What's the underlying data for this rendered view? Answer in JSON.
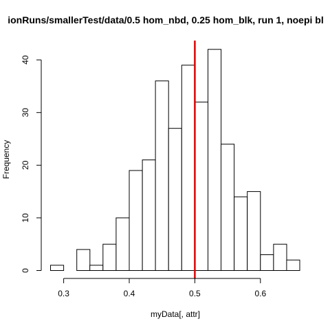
{
  "chart_data": {
    "type": "bar",
    "title": "ionRuns/smallerTest/data/0.5 hom_nbd, 0.25 hom_blk, run 1, noepi bl",
    "xlabel": "myData[, attr]",
    "ylabel": "Frequency",
    "bin_width": 0.02,
    "bins": [
      {
        "start": 0.28,
        "end": 0.3,
        "count": 1
      },
      {
        "start": 0.3,
        "end": 0.32,
        "count": 0
      },
      {
        "start": 0.32,
        "end": 0.34,
        "count": 4
      },
      {
        "start": 0.34,
        "end": 0.36,
        "count": 1
      },
      {
        "start": 0.36,
        "end": 0.38,
        "count": 5
      },
      {
        "start": 0.38,
        "end": 0.4,
        "count": 10
      },
      {
        "start": 0.4,
        "end": 0.42,
        "count": 19
      },
      {
        "start": 0.42,
        "end": 0.44,
        "count": 21
      },
      {
        "start": 0.44,
        "end": 0.46,
        "count": 36
      },
      {
        "start": 0.46,
        "end": 0.48,
        "count": 27
      },
      {
        "start": 0.48,
        "end": 0.5,
        "count": 39
      },
      {
        "start": 0.5,
        "end": 0.52,
        "count": 32
      },
      {
        "start": 0.52,
        "end": 0.54,
        "count": 42
      },
      {
        "start": 0.54,
        "end": 0.56,
        "count": 24
      },
      {
        "start": 0.56,
        "end": 0.58,
        "count": 14
      },
      {
        "start": 0.58,
        "end": 0.6,
        "count": 15
      },
      {
        "start": 0.6,
        "end": 0.62,
        "count": 3
      },
      {
        "start": 0.62,
        "end": 0.64,
        "count": 5
      },
      {
        "start": 0.64,
        "end": 0.66,
        "count": 2
      }
    ],
    "x_ticks": [
      {
        "value": 0.3,
        "label": "0.3"
      },
      {
        "value": 0.4,
        "label": "0.4"
      },
      {
        "value": 0.5,
        "label": "0.5"
      },
      {
        "value": 0.6,
        "label": "0.6"
      }
    ],
    "y_ticks": [
      {
        "value": 0,
        "label": "0"
      },
      {
        "value": 10,
        "label": "10"
      },
      {
        "value": 20,
        "label": "20"
      },
      {
        "value": 30,
        "label": "30"
      },
      {
        "value": 40,
        "label": "40"
      }
    ],
    "xlim": [
      0.28,
      0.66
    ],
    "ylim": [
      0,
      42
    ],
    "reference_line": {
      "x": 0.5,
      "color": "#dd0000"
    },
    "bar_fill": "#ffffff",
    "bar_stroke": "#000000",
    "grid": false
  }
}
